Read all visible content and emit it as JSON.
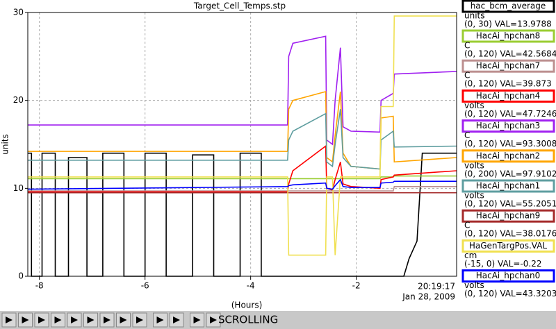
{
  "chart_data": {
    "type": "line",
    "title": "Target_Cell_Temps.stp",
    "y_label": "units",
    "x_label": "(Hours)",
    "time_label": "20:19:17",
    "date_label": "Jan 28, 2009",
    "status": "SCROLLING",
    "grid": true,
    "xlim": [
      -8.22,
      -0.1
    ],
    "ylim": [
      0,
      30
    ],
    "xticks": [
      -8,
      -6,
      -4,
      -2
    ],
    "yticks": [
      0,
      10,
      20,
      30
    ],
    "x": [
      -8.22,
      -3.3,
      -3.28,
      -3.2,
      -2.58,
      -2.56,
      -2.45,
      -2.4,
      -2.3,
      -2.25,
      -2.1,
      -1.55,
      -1.53,
      -1.3,
      -1.28,
      -0.1
    ],
    "series": [
      {
        "name": "hac_bcm_average",
        "color": "#000000",
        "units": "units",
        "range_label": "(0, 30) VAL=13.9788",
        "x": [
          -8.22,
          -8.15,
          -8.15,
          -7.95,
          -7.95,
          -7.7,
          -7.7,
          -7.45,
          -7.45,
          -7.1,
          -7.1,
          -6.8,
          -6.8,
          -6.4,
          -6.4,
          -6.0,
          -6.0,
          -5.6,
          -5.6,
          -5.1,
          -5.1,
          -4.7,
          -4.7,
          -4.2,
          -4.2,
          -3.8,
          -3.8,
          -1.1,
          -1.0,
          -0.85,
          -0.75,
          -0.1
        ],
        "values": [
          14,
          14,
          0,
          0,
          14,
          14,
          0,
          0,
          13.5,
          13.5,
          0,
          0,
          14,
          14,
          0,
          0,
          14,
          14,
          0,
          0,
          13.8,
          13.8,
          0,
          0,
          14,
          14,
          0,
          0,
          2,
          4,
          14,
          14
        ]
      },
      {
        "name": "HacAi_hpchan8",
        "color": "#9acd32",
        "units": "C",
        "range_label": "(0, 120) VAL=42.5684",
        "values": [
          11.1,
          11.1,
          11.1,
          11.1,
          11.1,
          11.1,
          11.1,
          11.1,
          11.1,
          11.1,
          11.1,
          11.1,
          11.3,
          11.3,
          11.4,
          11.4
        ]
      },
      {
        "name": "HacAi_hpchan7",
        "color": "#bc8f8f",
        "units": "C",
        "range_label": "(0, 120) VAL=39.873",
        "values": [
          9.7,
          9.7,
          9.7,
          9.7,
          9.7,
          9.7,
          9.7,
          9.7,
          9.7,
          9.7,
          9.7,
          9.7,
          9.7,
          9.7,
          10.2,
          10.2
        ]
      },
      {
        "name": "HacAi_hpchan4",
        "color": "#ff0000",
        "units": "volts",
        "range_label": "(0, 120) VAL=47.7246",
        "values": [
          9.6,
          9.6,
          10.5,
          12,
          14.8,
          10,
          9.8,
          11,
          13,
          10.5,
          10.2,
          10,
          11,
          11.3,
          11.5,
          12
        ]
      },
      {
        "name": "HacAi_hpchan3",
        "color": "#a020f0",
        "units": "C",
        "range_label": "(0, 120) VAL=93.3008",
        "values": [
          17.2,
          17.2,
          25,
          26.5,
          27.3,
          15.5,
          15,
          20,
          26,
          17,
          16.5,
          16.4,
          20,
          20.8,
          23,
          23.3
        ]
      },
      {
        "name": "HacAi_hpchan2",
        "color": "#ffa500",
        "units": "volts",
        "range_label": "(0, 200) VAL=97.9102",
        "values": [
          14.2,
          14.2,
          19,
          20,
          21,
          13.5,
          13,
          16,
          21,
          14,
          12.5,
          12.2,
          18,
          18.2,
          13,
          13.5
        ]
      },
      {
        "name": "HacAi_hpchan1",
        "color": "#5f9ea0",
        "units": "volts",
        "range_label": "(0, 120) VAL=55.2051",
        "values": [
          13.2,
          13.2,
          15.5,
          16.5,
          18.5,
          13,
          12.5,
          15,
          19,
          13.5,
          12.5,
          12.2,
          15.5,
          16.5,
          14.7,
          14.8
        ]
      },
      {
        "name": "HacAi_hpchan9",
        "color": "#a52a2a",
        "units": "C",
        "range_label": "(0, 120) VAL=38.0176",
        "values": [
          9.5,
          9.5,
          9.5,
          9.5,
          9.5,
          9.5,
          9.5,
          9.5,
          9.5,
          9.5,
          9.5,
          9.5,
          9.5,
          9.5,
          9.5,
          9.5
        ]
      },
      {
        "name": "HaGenTargPos.VAL",
        "color": "#f0e050",
        "units": "cm",
        "range_label": "(-15, 0) VAL=-0.22",
        "values": [
          11.3,
          11.3,
          2.4,
          2.4,
          2.4,
          11.3,
          11.3,
          2.4,
          11.3,
          11.3,
          11.3,
          11.3,
          19.3,
          19.3,
          29.6,
          29.6
        ]
      },
      {
        "name": "HacAi_hpchan0",
        "color": "#0000ff",
        "units": "volts",
        "range_label": "(0, 120) VAL=43.3203",
        "values": [
          9.9,
          10.2,
          10.3,
          10.4,
          10.6,
          10,
          9.9,
          10.3,
          11,
          10.2,
          10.1,
          10.1,
          10.6,
          10.7,
          10.8,
          10.8
        ]
      }
    ]
  }
}
